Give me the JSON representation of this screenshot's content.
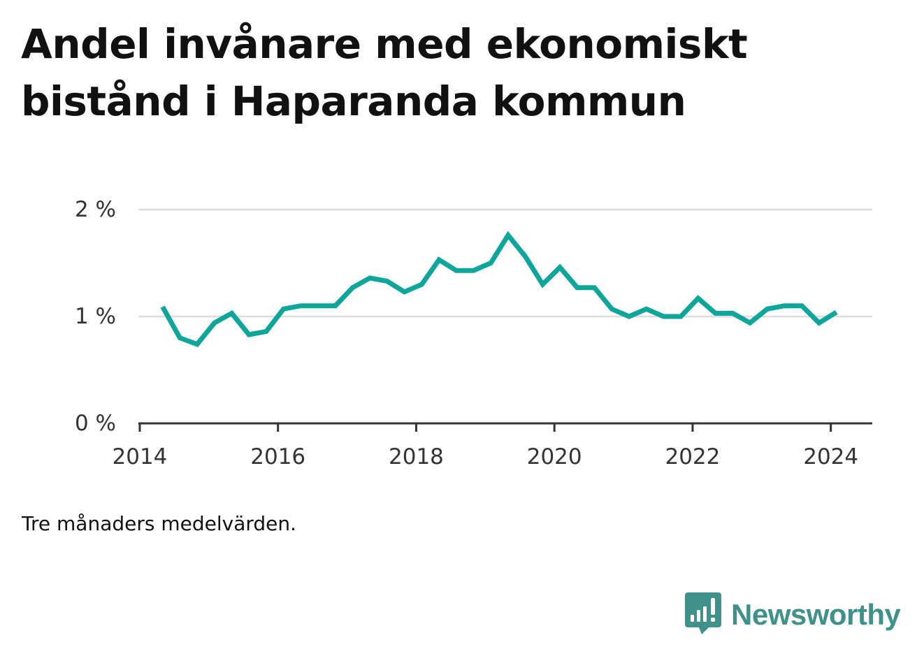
{
  "header": {
    "title": "Andel invånare med ekonomiskt bistånd i Haparanda kommun"
  },
  "footer": {
    "note": "Tre månaders medelvärden.",
    "brand": "Newsworthy",
    "brand_icon": "newsworthy-logo-icon"
  },
  "colors": {
    "line": "#0ea59a",
    "grid": "#dcdcdc",
    "axis": "#333333",
    "brand": "#3f9189"
  },
  "chart_data": {
    "type": "line",
    "title": "Andel invånare med ekonomiskt bistånd i Haparanda kommun",
    "xlabel": "",
    "ylabel": "",
    "xlim": [
      2013.98,
      2024.6
    ],
    "ylim": [
      0,
      2
    ],
    "grid": true,
    "x_ticks": [
      2014,
      2016,
      2018,
      2020,
      2022,
      2024
    ],
    "x_tick_labels": [
      "2014",
      "2016",
      "2018",
      "2020",
      "2022",
      "2024"
    ],
    "y_ticks": [
      0,
      1,
      2
    ],
    "y_tick_labels": [
      "0 %",
      "1 %",
      "2 %"
    ],
    "series": [
      {
        "x": [
          2014.33,
          2014.58,
          2014.83,
          2015.08,
          2015.33,
          2015.58,
          2015.83,
          2016.08,
          2016.33,
          2016.58,
          2016.83,
          2017.08,
          2017.33,
          2017.58,
          2017.83,
          2018.08,
          2018.33,
          2018.58,
          2018.83,
          2019.08,
          2019.33,
          2019.58,
          2019.83,
          2020.08,
          2020.33,
          2020.58,
          2020.83,
          2021.08,
          2021.33,
          2021.58,
          2021.83,
          2022.08,
          2022.33,
          2022.58,
          2022.83,
          2023.08,
          2023.33,
          2023.58,
          2023.83,
          2024.08
        ],
        "y": [
          1.09,
          0.8,
          0.74,
          0.94,
          1.03,
          0.83,
          0.86,
          1.07,
          1.1,
          1.1,
          1.1,
          1.27,
          1.36,
          1.33,
          1.23,
          1.3,
          1.53,
          1.43,
          1.43,
          1.5,
          1.76,
          1.56,
          1.3,
          1.46,
          1.27,
          1.27,
          1.07,
          1.0,
          1.07,
          1.0,
          1.0,
          1.17,
          1.03,
          1.03,
          0.94,
          1.07,
          1.1,
          1.1,
          0.94,
          1.04
        ]
      }
    ]
  }
}
